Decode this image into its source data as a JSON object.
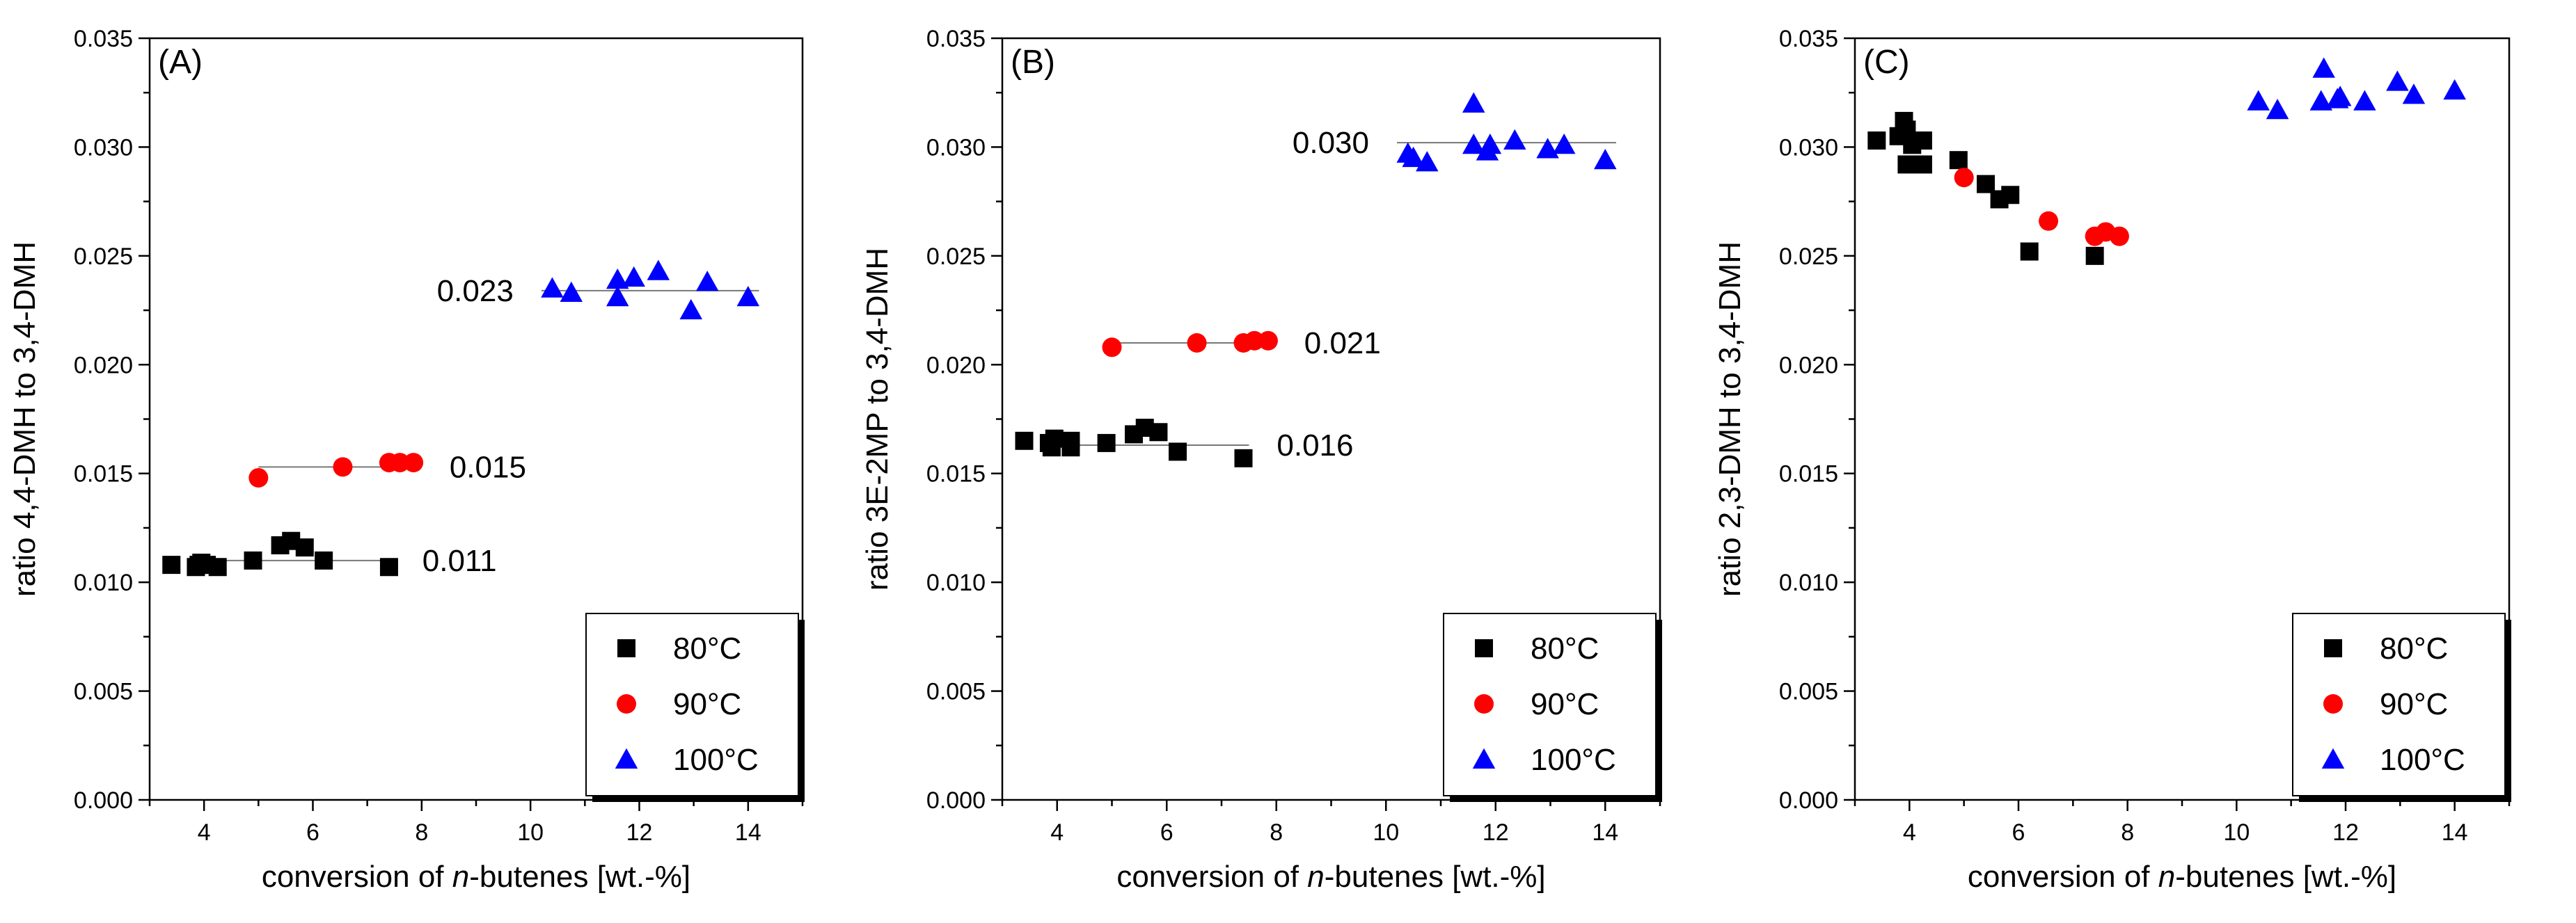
{
  "chart_data": [
    {
      "type": "scatter",
      "panel_label": "(A)",
      "xlabel_prefix": "conversion of ",
      "xlabel_italic": "n",
      "xlabel_suffix": "-butenes [wt.-%]",
      "ylabel": "ratio 4,4-DMH to 3,4-DMH",
      "xlim": [
        3,
        15
      ],
      "ylim": [
        0,
        0.035
      ],
      "xticks": [
        "4",
        "6",
        "8",
        "10",
        "12",
        "14"
      ],
      "yticks": [
        "0.000",
        "0.005",
        "0.010",
        "0.015",
        "0.020",
        "0.025",
        "0.030",
        "0.035"
      ],
      "legend_position": "bottom-right",
      "series": [
        {
          "name": "80°C",
          "marker": "square",
          "color": "#000000",
          "x": [
            3.4,
            3.85,
            3.9,
            3.95,
            4.05,
            4.25,
            4.9,
            5.4,
            5.6,
            5.85,
            6.2,
            7.4
          ],
          "y": [
            0.0108,
            0.0107,
            0.0108,
            0.0109,
            0.0108,
            0.0107,
            0.011,
            0.0117,
            0.0119,
            0.0116,
            0.011,
            0.0107
          ]
        },
        {
          "name": "90°C",
          "marker": "circle",
          "color": "#ff0000",
          "x": [
            5.0,
            6.55,
            7.4,
            7.6,
            7.85
          ],
          "y": [
            0.0148,
            0.0153,
            0.0155,
            0.0155,
            0.0155
          ]
        },
        {
          "name": "100°C",
          "marker": "triangle",
          "color": "#0000ff",
          "x": [
            10.4,
            10.75,
            11.6,
            11.6,
            11.9,
            12.35,
            12.95,
            13.25,
            14.0
          ],
          "y": [
            0.0235,
            0.0233,
            0.0239,
            0.0231,
            0.024,
            0.0243,
            0.0225,
            0.0238,
            0.0231
          ]
        }
      ],
      "mean_lines": [
        {
          "label": "0.011",
          "x": [
            4.0,
            7.5
          ],
          "y": 0.011,
          "label_side": "right"
        },
        {
          "label": "0.015",
          "x": [
            5.0,
            8.0
          ],
          "y": 0.0153,
          "label_side": "right"
        },
        {
          "label": "0.023",
          "x": [
            10.2,
            14.2
          ],
          "y": 0.0234,
          "label_side": "left"
        }
      ]
    },
    {
      "type": "scatter",
      "panel_label": "(B)",
      "xlabel_prefix": "conversion of ",
      "xlabel_italic": "n",
      "xlabel_suffix": "-butenes [wt.-%]",
      "ylabel": "ratio 3E-2MP to 3,4-DMH",
      "xlim": [
        3,
        15
      ],
      "ylim": [
        0,
        0.035
      ],
      "xticks": [
        "4",
        "6",
        "8",
        "10",
        "12",
        "14"
      ],
      "yticks": [
        "0.000",
        "0.005",
        "0.010",
        "0.015",
        "0.020",
        "0.025",
        "0.030",
        "0.035"
      ],
      "legend_position": "bottom-right",
      "series": [
        {
          "name": "80°C",
          "marker": "square",
          "color": "#000000",
          "x": [
            3.4,
            3.85,
            3.9,
            3.95,
            4.25,
            4.25,
            4.9,
            5.4,
            5.6,
            5.85,
            6.2,
            7.4
          ],
          "y": [
            0.0165,
            0.0164,
            0.0162,
            0.0166,
            0.0162,
            0.0165,
            0.0164,
            0.0168,
            0.0171,
            0.0169,
            0.016,
            0.0157
          ]
        },
        {
          "name": "90°C",
          "marker": "circle",
          "color": "#ff0000",
          "x": [
            5.0,
            6.55,
            7.4,
            7.6,
            7.85
          ],
          "y": [
            0.0208,
            0.021,
            0.021,
            0.0211,
            0.0211
          ]
        },
        {
          "name": "100°C",
          "marker": "triangle",
          "color": "#0000ff",
          "x": [
            10.4,
            10.5,
            10.75,
            11.6,
            11.6,
            11.85,
            11.9,
            12.35,
            12.95,
            13.25,
            14.0
          ],
          "y": [
            0.0297,
            0.0295,
            0.0293,
            0.032,
            0.0301,
            0.0298,
            0.0301,
            0.0303,
            0.0299,
            0.0301,
            0.0294
          ]
        }
      ],
      "mean_lines": [
        {
          "label": "0.016",
          "x": [
            4.0,
            7.5
          ],
          "y": 0.0163,
          "label_side": "right"
        },
        {
          "label": "0.021",
          "x": [
            5.0,
            8.0
          ],
          "y": 0.021,
          "label_side": "right"
        },
        {
          "label": "0.030",
          "x": [
            10.2,
            14.2
          ],
          "y": 0.0302,
          "label_side": "left"
        }
      ]
    },
    {
      "type": "scatter",
      "panel_label": "(C)",
      "xlabel_prefix": "conversion of ",
      "xlabel_italic": "n",
      "xlabel_suffix": "-butenes [wt.-%]",
      "ylabel": "ratio 2,3-DMH to 3,4-DMH",
      "xlim": [
        3,
        15
      ],
      "ylim": [
        0,
        0.035
      ],
      "xticks": [
        "4",
        "6",
        "8",
        "10",
        "12",
        "14"
      ],
      "yticks": [
        "0.000",
        "0.005",
        "0.010",
        "0.015",
        "0.020",
        "0.025",
        "0.030",
        "0.035"
      ],
      "legend_position": "bottom-right",
      "series": [
        {
          "name": "80°C",
          "marker": "square",
          "color": "#000000",
          "x": [
            3.4,
            3.8,
            3.9,
            3.95,
            3.95,
            4.05,
            4.25,
            4.25,
            4.9,
            5.4,
            5.65,
            5.85,
            6.2,
            7.4
          ],
          "y": [
            0.0303,
            0.0305,
            0.0312,
            0.0308,
            0.0292,
            0.0301,
            0.0303,
            0.0292,
            0.0294,
            0.0283,
            0.0276,
            0.0278,
            0.0252,
            0.025
          ]
        },
        {
          "name": "90°C",
          "marker": "circle",
          "color": "#ff0000",
          "x": [
            5.0,
            6.55,
            7.4,
            7.6,
            7.85
          ],
          "y": [
            0.0286,
            0.0266,
            0.0259,
            0.0261,
            0.0259
          ]
        },
        {
          "name": "100°C",
          "marker": "triangle",
          "color": "#0000ff",
          "x": [
            10.4,
            10.75,
            11.55,
            11.6,
            11.85,
            11.9,
            12.35,
            12.95,
            13.25,
            14.0
          ],
          "y": [
            0.0321,
            0.0317,
            0.0321,
            0.0336,
            0.0322,
            0.0323,
            0.0321,
            0.033,
            0.0324,
            0.0326
          ]
        }
      ],
      "mean_lines": []
    }
  ]
}
